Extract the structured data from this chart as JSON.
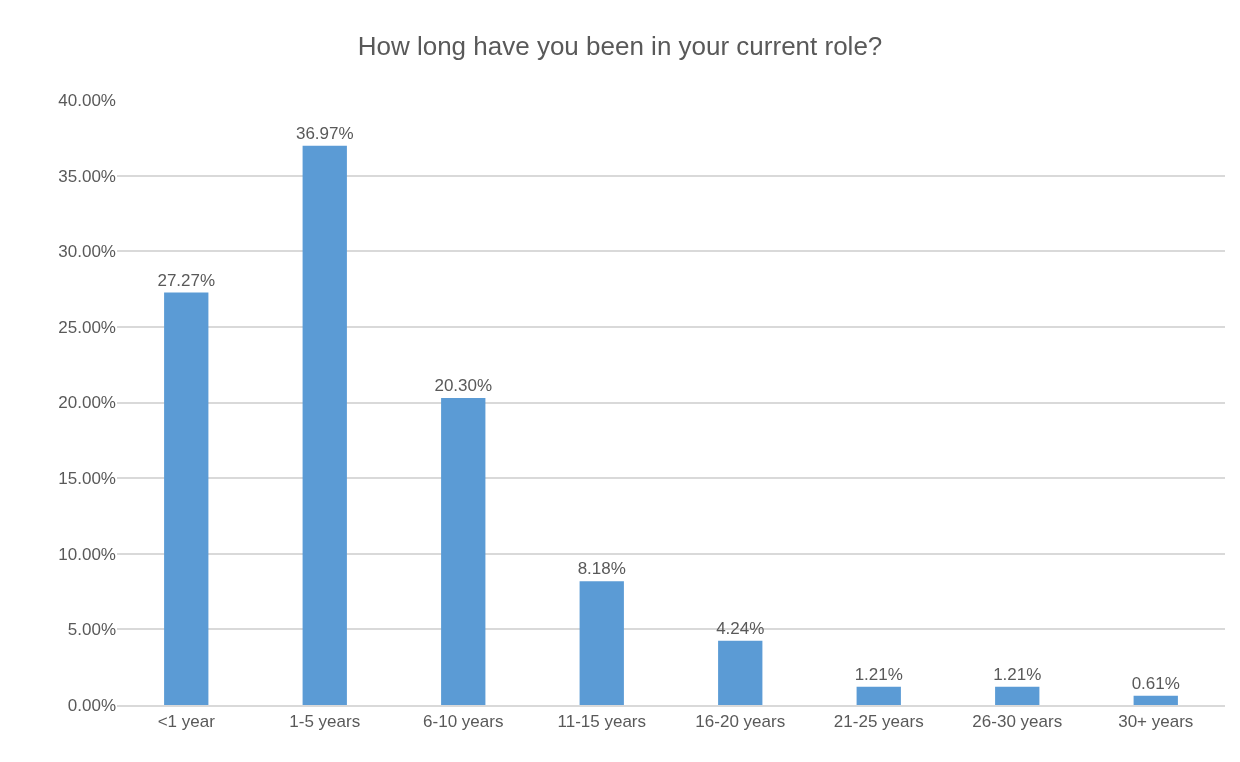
{
  "chart_data": {
    "type": "bar",
    "title": "How long have you been in your current role?",
    "categories": [
      "<1 year",
      "1-5 years",
      "6-10 years",
      "11-15 years",
      "16-20 years",
      "21-25 years",
      "26-30 years",
      "30+ years"
    ],
    "values": [
      27.27,
      36.97,
      20.3,
      8.18,
      4.24,
      1.21,
      1.21,
      0.61
    ],
    "value_labels": [
      "27.27%",
      "36.97%",
      "20.30%",
      "8.18%",
      "4.24%",
      "1.21%",
      "1.21%",
      "0.61%"
    ],
    "color": "#5b9bd5",
    "ylim": [
      0,
      40
    ],
    "yticks": [
      {
        "value": 0,
        "label": "0.00%"
      },
      {
        "value": 5,
        "label": "5.00%"
      },
      {
        "value": 10,
        "label": "10.00%"
      },
      {
        "value": 15,
        "label": "15.00%"
      },
      {
        "value": 20,
        "label": "20.00%"
      },
      {
        "value": 25,
        "label": "25.00%"
      },
      {
        "value": 30,
        "label": "30.00%"
      },
      {
        "value": 35,
        "label": "35.00%"
      },
      {
        "value": 40,
        "label": "40.00%"
      }
    ],
    "grid": "y"
  }
}
